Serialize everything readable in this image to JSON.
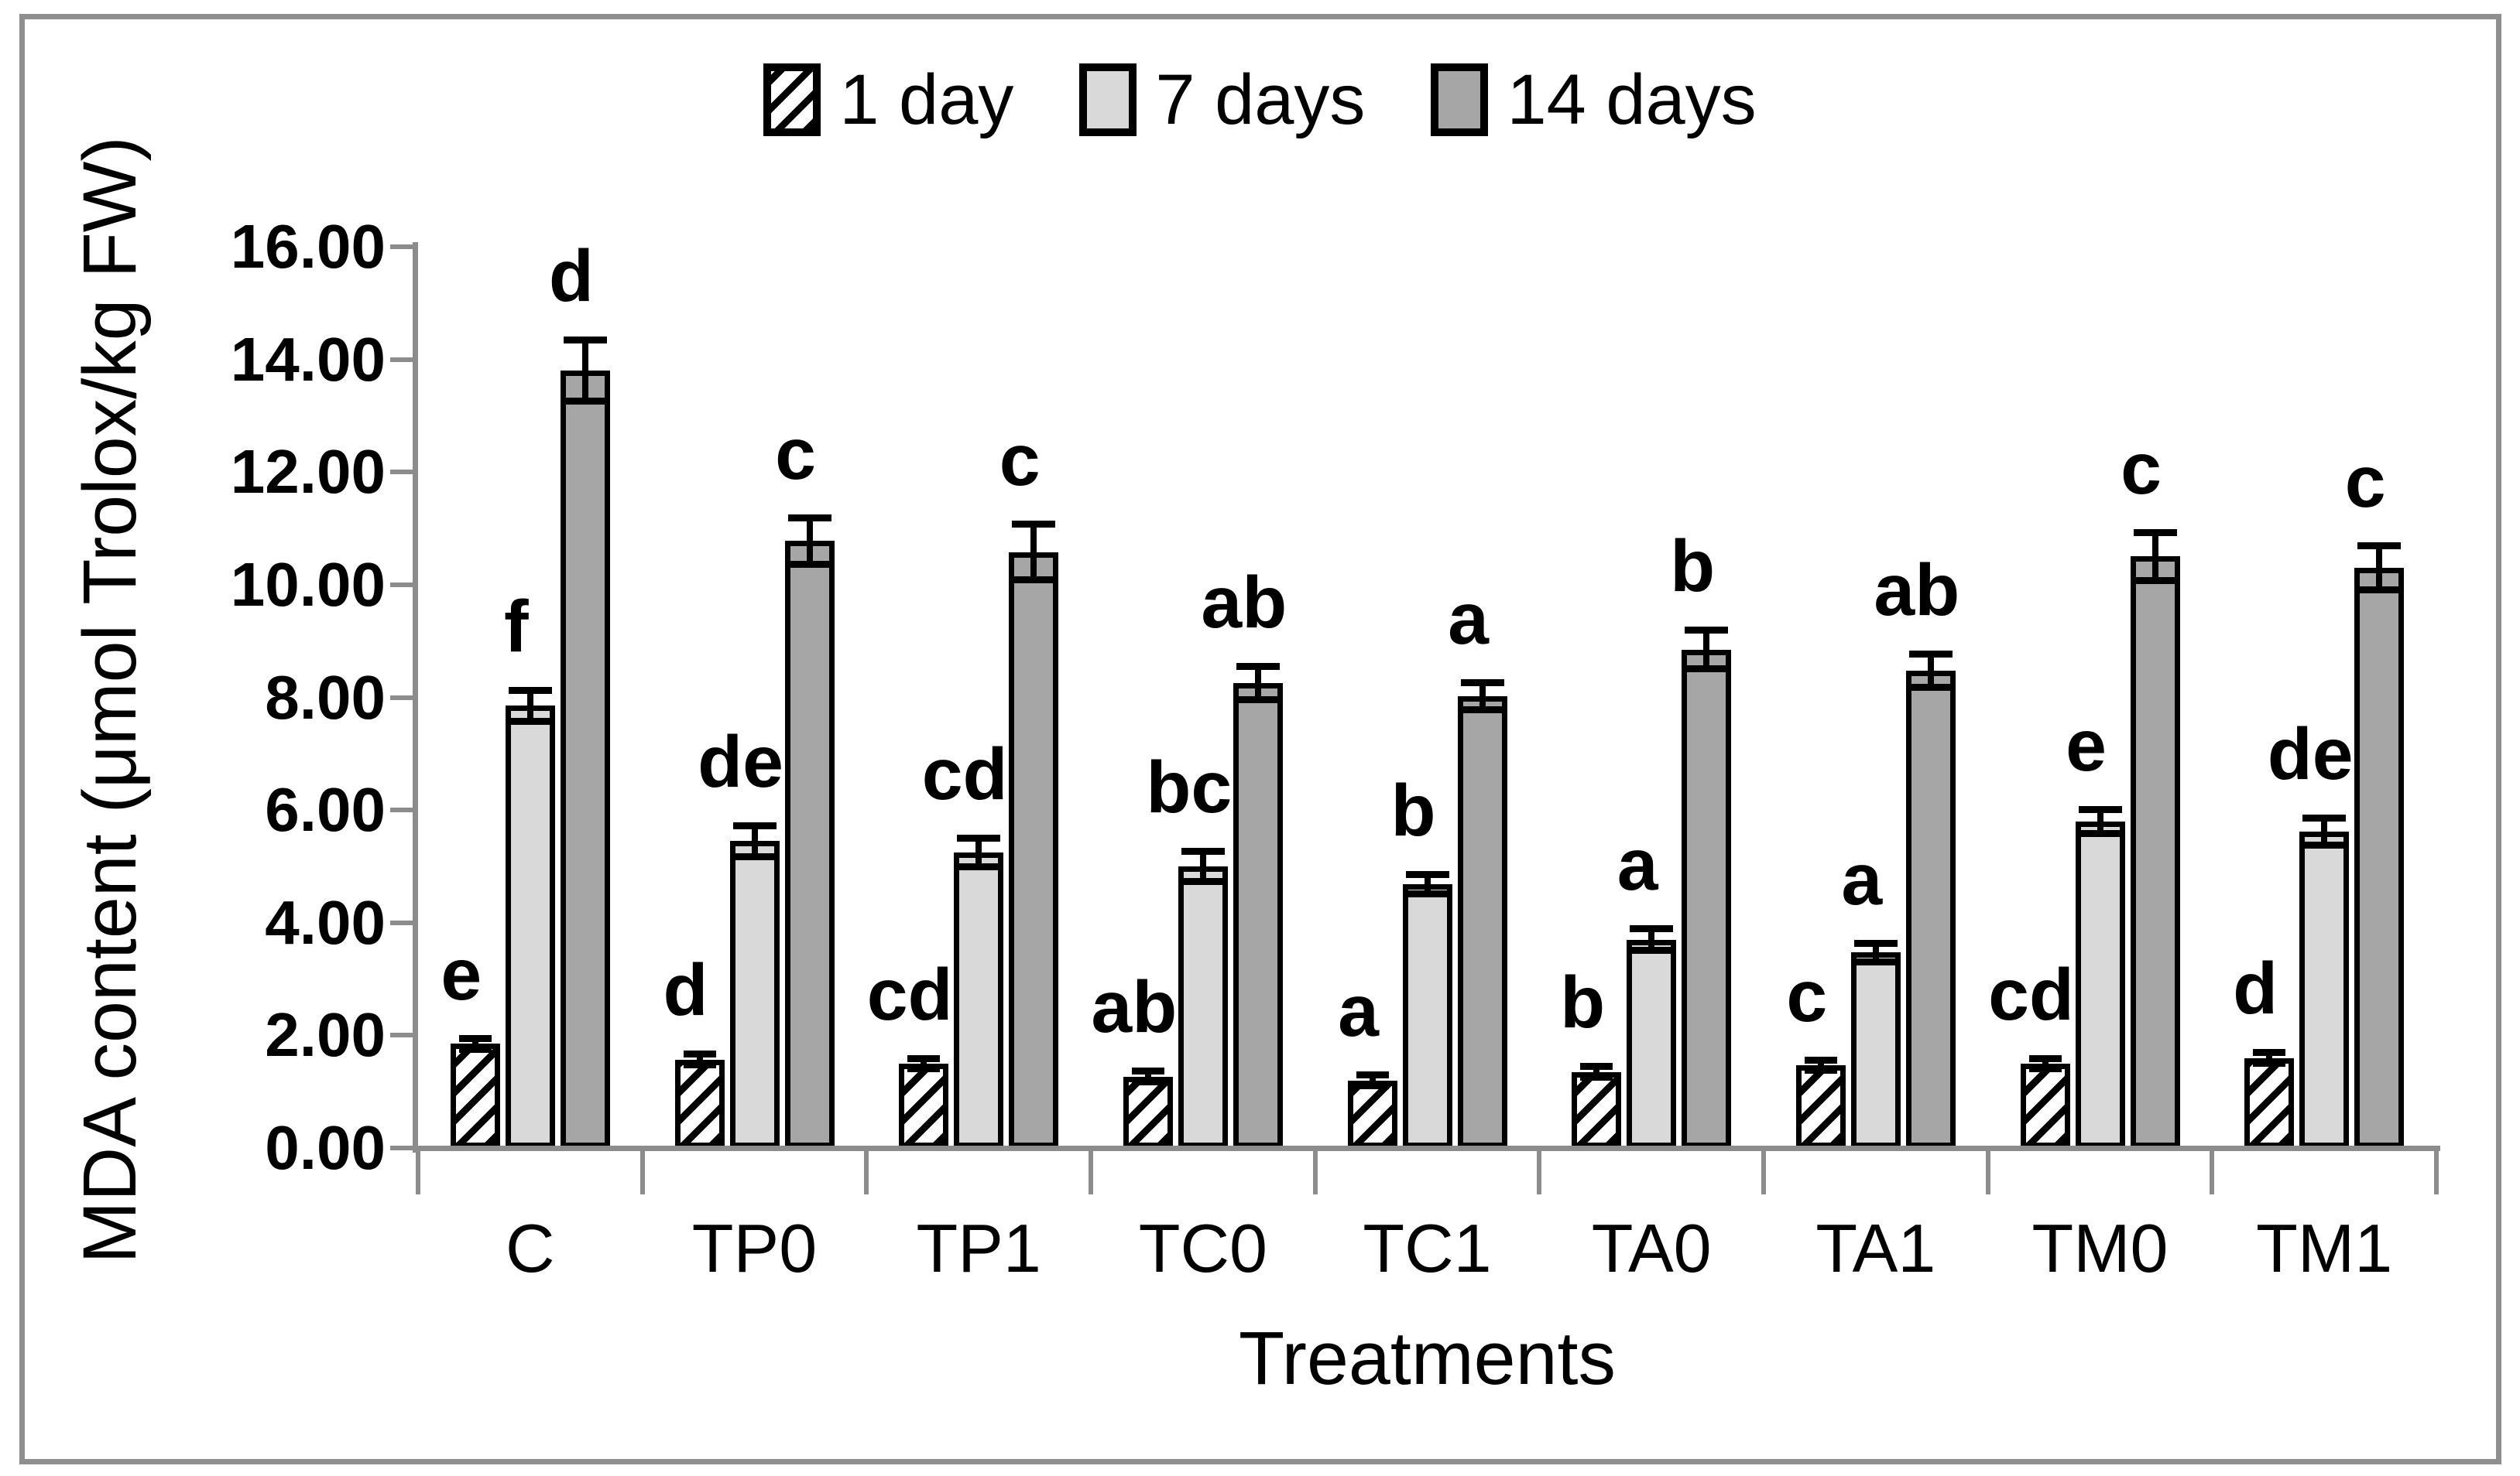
{
  "legend": {
    "items": [
      {
        "label": "1 day",
        "swatch": "diagonal-hatch"
      },
      {
        "label": "7 days",
        "swatch": "light-gray"
      },
      {
        "label": "14 days",
        "swatch": "dark-gray"
      }
    ]
  },
  "axes": {
    "y_title": "MDA content (μmol Trolox/kg FW)",
    "x_title": "Treatments",
    "y_tick_labels": [
      "16.00",
      "14.00",
      "12.00",
      "10.00",
      "8.00",
      "6.00",
      "4.00",
      "2.00",
      "0.00"
    ]
  },
  "colors": {
    "light_gray_series": "#d9d9d9",
    "dark_gray_series": "#a6a6a6",
    "axis_gray": "#8c8c8c",
    "figure_border_gray": "#8f8f8f",
    "bar_border": "#000000"
  },
  "chart_data": {
    "type": "bar",
    "title": "",
    "xlabel": "Treatments",
    "ylabel": "MDA content (μmol Trolox/kg FW)",
    "ylim": [
      0,
      16
    ],
    "ytick_step": 2,
    "grid": false,
    "legend_position": "top-center",
    "error_bars": true,
    "categories": [
      "C",
      "TP0",
      "TP1",
      "TC0",
      "TC1",
      "TA0",
      "TA1",
      "TM0",
      "TM1"
    ],
    "series": [
      {
        "name": "1 day",
        "fill": "diagonal-hatch",
        "values": [
          1.85,
          1.57,
          1.5,
          1.27,
          1.2,
          1.35,
          1.47,
          1.5,
          1.6
        ],
        "errors": [
          0.1,
          0.1,
          0.1,
          0.1,
          0.1,
          0.1,
          0.1,
          0.1,
          0.1
        ],
        "sig_letters": [
          "e",
          "d",
          "cd",
          "ab",
          "a",
          "b",
          "c",
          "cd",
          "d"
        ]
      },
      {
        "name": "7 days",
        "fill": "#d9d9d9",
        "values": [
          7.85,
          5.45,
          5.25,
          5.0,
          4.68,
          3.7,
          3.47,
          5.8,
          5.62
        ],
        "errors": [
          0.28,
          0.28,
          0.26,
          0.28,
          0.18,
          0.2,
          0.17,
          0.22,
          0.25
        ],
        "sig_letters": [
          "f",
          "de",
          "cd",
          "bc",
          "b",
          "a",
          "a",
          "e",
          "de"
        ]
      },
      {
        "name": "14 days",
        "fill": "#a6a6a6",
        "values": [
          13.8,
          10.78,
          10.58,
          8.25,
          8.02,
          8.85,
          8.47,
          10.5,
          10.3
        ],
        "errors": [
          0.55,
          0.42,
          0.5,
          0.3,
          0.25,
          0.35,
          0.3,
          0.43,
          0.4
        ],
        "sig_letters": [
          "d",
          "c",
          "c",
          "ab",
          "a",
          "b",
          "ab",
          "c",
          "c"
        ]
      }
    ]
  }
}
